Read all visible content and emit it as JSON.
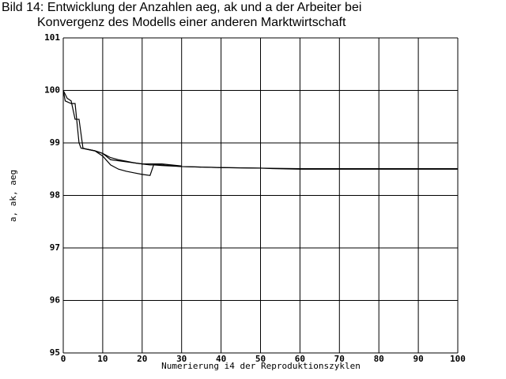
{
  "chart_data": {
    "type": "line",
    "title": [
      "Bild 14: Entwicklung der Anzahlen aeg, ak und a der Arbeiter bei",
      "Konvergenz des Modells einer anderen Marktwirtschaft"
    ],
    "x_label": "Numerierung i4 der Reproduktionszyklen",
    "y_label": "a, ak, aeg",
    "xlim": [
      0,
      100
    ],
    "xticks": [
      0,
      10,
      20,
      30,
      40,
      50,
      60,
      70,
      80,
      90,
      100
    ],
    "ylim": [
      95,
      101
    ],
    "yticks": [
      95,
      96,
      97,
      98,
      99,
      100,
      101
    ],
    "grid": true,
    "series": [
      {
        "color": "#000000",
        "x": [
          0,
          1,
          2,
          3,
          4,
          5,
          6,
          8,
          10,
          12,
          14,
          16,
          18,
          20,
          22,
          23,
          25,
          30,
          40,
          50,
          60,
          70,
          80,
          90,
          100
        ],
        "values": [
          100,
          99.85,
          99.8,
          99.45,
          99.45,
          98.9,
          98.88,
          98.85,
          98.8,
          98.72,
          98.68,
          98.65,
          98.62,
          98.6,
          98.6,
          98.6,
          98.58,
          98.55,
          98.53,
          98.52,
          98.51,
          98.51,
          98.51,
          98.51,
          98.51
        ]
      },
      {
        "color": "#000000",
        "x": [
          0,
          0.5,
          2,
          3,
          4,
          4.5,
          6,
          8,
          10,
          12,
          15,
          18,
          20,
          22,
          23,
          25,
          30,
          40,
          50,
          53,
          60,
          80,
          100
        ],
        "values": [
          100,
          99.8,
          99.75,
          99.75,
          99.0,
          98.9,
          98.88,
          98.85,
          98.8,
          98.68,
          98.65,
          98.62,
          98.6,
          98.58,
          98.58,
          98.57,
          98.55,
          98.53,
          98.52,
          98.51,
          98.5,
          98.5,
          98.5
        ]
      },
      {
        "color": "#000000",
        "x": [
          6,
          8,
          10,
          12,
          14,
          16,
          18,
          20,
          22,
          23,
          25,
          30
        ],
        "values": [
          98.88,
          98.85,
          98.75,
          98.58,
          98.5,
          98.46,
          98.43,
          98.4,
          98.38,
          98.6,
          98.6,
          98.56
        ]
      }
    ]
  }
}
